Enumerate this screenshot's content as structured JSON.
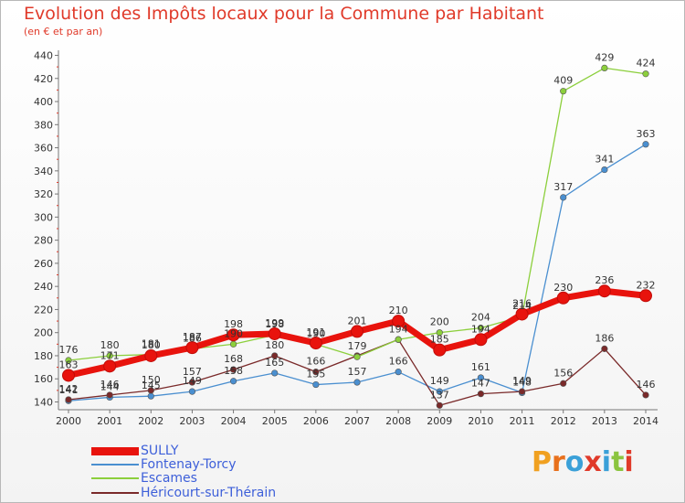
{
  "title": "Evolution des Impôts locaux pour la Commune par Habitant",
  "subtitle": "(en € et par an)",
  "logo": {
    "text": "Proxiti",
    "colors": [
      "#f0a020",
      "#e8701c",
      "#3aa0d8",
      "#e03a2a",
      "#3aa0d8",
      "#8bc43f",
      "#e03a2a"
    ]
  },
  "chart_data": {
    "type": "line",
    "title": "Evolution des Impôts locaux pour la Commune par Habitant",
    "subtitle": "(en € et par an)",
    "xlabel": "",
    "ylabel": "",
    "ylim": [
      130,
      440
    ],
    "yticks": [
      140,
      160,
      180,
      200,
      220,
      240,
      260,
      280,
      300,
      320,
      340,
      360,
      380,
      400,
      420,
      440
    ],
    "grid": false,
    "legend_position": "bottom-left",
    "x": [
      "2000",
      "2001",
      "2002",
      "2003",
      "2004",
      "2005",
      "2006",
      "2007",
      "2008",
      "2009",
      "2010",
      "2011",
      "2012",
      "2013",
      "2014"
    ],
    "series": [
      {
        "name": "SULLY",
        "color": "#e8130d",
        "values": [
          163,
          171,
          180,
          187,
          198,
          199,
          191,
          201,
          210,
          185,
          194,
          216,
          230,
          236,
          232
        ],
        "labels": [
          "163",
          "171",
          "180",
          "187",
          "198",
          "199",
          "191",
          "201",
          "210",
          "185",
          "194",
          "216",
          "230",
          "236",
          "232"
        ]
      },
      {
        "name": "Fontenay-Torcy",
        "color": "#4a8fd0",
        "values": [
          141,
          144,
          145,
          149,
          158,
          165,
          155,
          157,
          166,
          149,
          161,
          148,
          317,
          341,
          363
        ],
        "labels": [
          "141",
          "144",
          "145",
          "149",
          "158",
          "165",
          "155",
          "157",
          "166",
          "149",
          "161",
          "148",
          "317",
          "341",
          "363"
        ]
      },
      {
        "name": "Escames",
        "color": "#8ccf3c",
        "values": [
          176,
          180,
          181,
          186,
          190,
          198,
          190,
          179,
          194,
          200,
          204,
          214,
          409,
          429,
          424
        ],
        "labels": [
          "176",
          "180",
          "181",
          "186",
          "190",
          "198",
          "190",
          "179",
          "194",
          "200",
          "204",
          "214",
          "409",
          "429",
          "424"
        ]
      },
      {
        "name": "Héricourt-sur-Thérain",
        "color": "#7a2a2a",
        "values": [
          142,
          146,
          150,
          157,
          168,
          180,
          166,
          180,
          194,
          137,
          147,
          149,
          156,
          186,
          146
        ],
        "labels": [
          "142",
          "146",
          "150",
          "157",
          "168",
          "180",
          "166",
          "",
          "",
          "137",
          "147",
          "149",
          "156",
          "186",
          "146"
        ]
      }
    ]
  }
}
